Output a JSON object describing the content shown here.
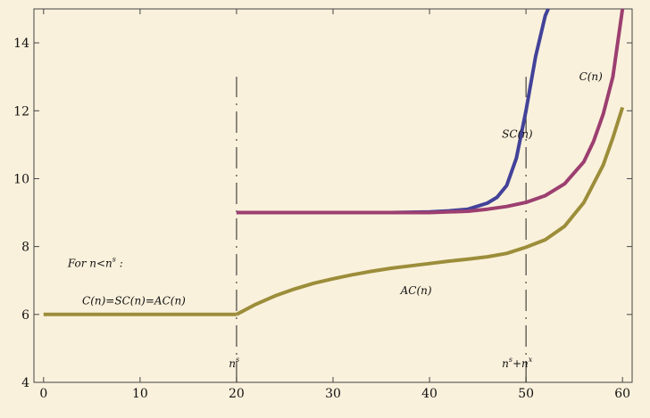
{
  "chart_data": {
    "type": "line",
    "title": "",
    "xlabel": "",
    "ylabel": "",
    "xlim": [
      -1,
      61
    ],
    "ylim": [
      4,
      15
    ],
    "x_ticks": [
      0,
      10,
      20,
      30,
      40,
      50,
      60
    ],
    "y_ticks": [
      4,
      6,
      8,
      10,
      12,
      14
    ],
    "x_tick_labels": [
      "0",
      "10",
      "20",
      "30",
      "40",
      "50",
      "60"
    ],
    "y_tick_labels": [
      "4",
      "6",
      "8",
      "10",
      "12",
      "14"
    ],
    "grid": false,
    "legend": "none",
    "series": [
      {
        "color": "#9c8d3a",
        "x": [
          0,
          20
        ],
        "y": [
          6,
          6
        ]
      },
      {
        "name": "AC(n)",
        "color": "#9c8d3a",
        "x": [
          20,
          22,
          24,
          26,
          28,
          30,
          32,
          34,
          36,
          38,
          40,
          42,
          44,
          46,
          48,
          50,
          52,
          54,
          56,
          58,
          59,
          60
        ],
        "y": [
          6.0,
          6.3,
          6.55,
          6.75,
          6.92,
          7.05,
          7.17,
          7.27,
          7.36,
          7.43,
          7.5,
          7.57,
          7.63,
          7.7,
          7.8,
          7.98,
          8.2,
          8.6,
          9.3,
          10.4,
          11.2,
          12.1
        ]
      },
      {
        "name": "SC(n)",
        "color": "#43429a",
        "x": [
          20,
          30,
          36,
          40,
          42,
          44,
          46,
          47,
          48,
          49,
          50,
          51,
          52,
          52.3
        ],
        "y": [
          9.0,
          9.0,
          9.0,
          9.02,
          9.05,
          9.1,
          9.28,
          9.45,
          9.8,
          10.6,
          12.0,
          13.6,
          14.8,
          15.0
        ]
      },
      {
        "name": "C(n)",
        "color": "#9c3f70",
        "x": [
          20,
          30,
          40,
          44,
          46,
          48,
          50,
          52,
          54,
          56,
          57,
          58,
          59,
          60
        ],
        "y": [
          9.0,
          9.0,
          9.0,
          9.04,
          9.1,
          9.18,
          9.3,
          9.5,
          9.85,
          10.5,
          11.1,
          11.9,
          13.0,
          15.0
        ]
      }
    ],
    "vlines": [
      {
        "x": 20,
        "y_from": 4,
        "y_to": 13
      },
      {
        "x": 50,
        "y_from": 4,
        "y_to": 13
      }
    ],
    "annotations": {
      "sc_label": {
        "text": "SC(n)",
        "x": 47.5,
        "y": 11.2
      },
      "c_label": {
        "text": "C(n)",
        "x": 55.5,
        "y": 12.9
      },
      "ac_label": {
        "text": "AC(n)",
        "x": 37,
        "y": 6.6
      },
      "for_label": {
        "text": "For n<n",
        "sup": "s",
        "tail": " :",
        "x": 2.5,
        "y": 7.4
      },
      "eq_label": {
        "text": "C(n)=SC(n)=AC(n)",
        "x": 4,
        "y": 6.3
      },
      "ns_label": {
        "text": "n",
        "sup": "s",
        "x": 19.2,
        "y": 4.45
      },
      "nsx_label": {
        "text": "n",
        "sup1": "s",
        "mid": "+n",
        "sup2": "x",
        "x": 47.5,
        "y": 4.45
      }
    }
  }
}
